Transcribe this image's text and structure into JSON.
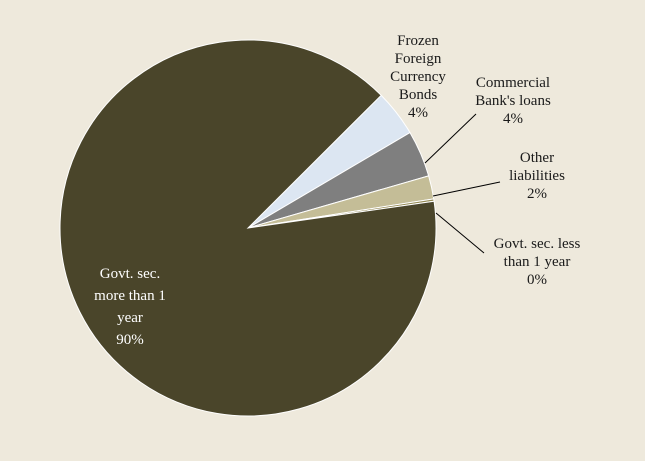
{
  "chart_data": {
    "type": "pie",
    "slices": [
      {
        "label": "Frozen Foreign Currency Bonds",
        "label_lines": [
          "Frozen",
          "Foreign",
          "Currency",
          "Bonds"
        ],
        "percent_label": "4%",
        "value": 4,
        "color": "#dce6f2"
      },
      {
        "label": "Commercial Bank's loans",
        "label_lines": [
          "Commercial",
          "Bank's loans"
        ],
        "percent_label": "4%",
        "value": 4,
        "color": "#7f7f7f"
      },
      {
        "label": "Other liabilities",
        "label_lines": [
          "Other",
          "liabilities"
        ],
        "percent_label": "2%",
        "value": 2,
        "color": "#c4bd97"
      },
      {
        "label": "Govt. sec. less than 1 year",
        "label_lines": [
          "Govt. sec. less",
          "than 1 year"
        ],
        "percent_label": "0%",
        "value": 0.2,
        "color": "#938953"
      },
      {
        "label": "Govt. sec. more than 1 year",
        "label_lines": [
          "Govt. sec.",
          "more than 1",
          "year"
        ],
        "percent_label": "90%",
        "value": 89.8,
        "color": "#4a452a"
      }
    ],
    "background": "#eee9dc"
  }
}
